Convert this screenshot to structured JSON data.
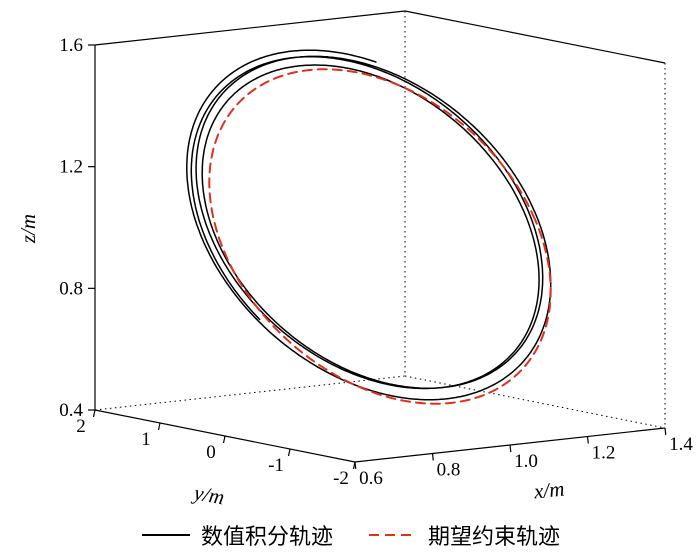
{
  "chart_data": {
    "type": "line",
    "subtype": "trajectory-3d",
    "title": "",
    "axes": {
      "x": {
        "label": "x/m",
        "min": 0.6,
        "max": 1.4,
        "ticks": [
          0.6,
          0.8,
          1.0,
          1.2,
          1.4
        ],
        "tick_labels": [
          "0.6",
          "0.8",
          "1.0",
          "1.2",
          "1.4"
        ]
      },
      "y": {
        "label": "y/m",
        "min": -2,
        "max": 2,
        "ticks": [
          2,
          1,
          0,
          -1,
          -2
        ],
        "tick_labels": [
          "2",
          "1",
          "0",
          "-1",
          "-2"
        ]
      },
      "z": {
        "label": "z/m",
        "min": 0.4,
        "max": 1.6,
        "ticks": [
          0.4,
          0.8,
          1.2,
          1.6
        ],
        "tick_labels": [
          "0.4",
          "0.8",
          "1.2",
          "1.6"
        ]
      }
    },
    "view": {
      "projection": "orthographic",
      "grid": "dotted-back-edges",
      "legend_position": "bottom-center"
    },
    "series": [
      {
        "name": "数值积分轨迹",
        "line": "solid",
        "color": "#000000",
        "width": 1.5,
        "param": {
          "center": [
            1.0,
            0.15,
            1.03
          ],
          "radius": [
            0.41,
            1.15,
            0.5
          ],
          "loops": 3.4,
          "t_start": 1.1,
          "wobble_amp": 0.045,
          "wobble_freq": 0.27,
          "wobble_phase": 0.9
        }
      },
      {
        "name": "期望约束轨迹",
        "line": "dashed",
        "color": "#e0301e",
        "width": 2,
        "param": {
          "center": [
            1.0,
            0.0,
            1.0
          ],
          "radius": [
            0.4,
            1.1,
            0.5
          ],
          "loops": 1,
          "t_start": 0,
          "wobble_amp": 0,
          "wobble_freq": 0,
          "wobble_phase": 0
        }
      }
    ],
    "legend": {
      "entries": [
        "数值积分轨迹",
        "期望约束轨迹"
      ]
    }
  }
}
